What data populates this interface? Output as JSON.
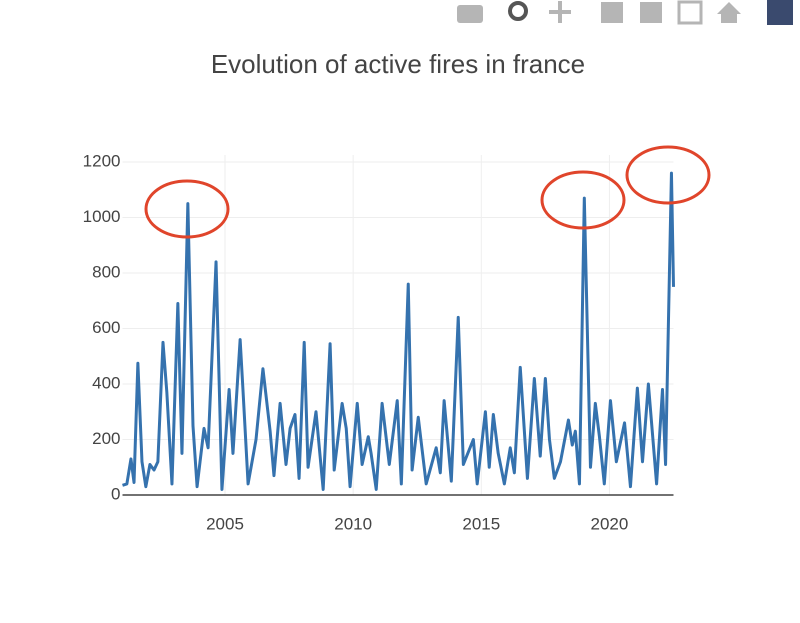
{
  "chart_data": {
    "type": "line",
    "title": "Evolution of active fires in france",
    "x": [
      2001.0,
      2001.17,
      2001.33,
      2001.45,
      2001.6,
      2001.76,
      2001.91,
      2002.07,
      2002.23,
      2002.38,
      2002.58,
      2002.73,
      2002.93,
      2003.16,
      2003.32,
      2003.55,
      2003.75,
      2003.91,
      2004.18,
      2004.34,
      2004.65,
      2004.88,
      2005.16,
      2005.31,
      2005.59,
      2005.7,
      2005.9,
      2006.21,
      2006.48,
      2006.76,
      2006.91,
      2007.15,
      2007.38,
      2007.54,
      2007.73,
      2007.89,
      2008.09,
      2008.24,
      2008.55,
      2008.83,
      2009.1,
      2009.26,
      2009.57,
      2009.73,
      2009.88,
      2010.16,
      2010.35,
      2010.59,
      2010.7,
      2010.9,
      2011.13,
      2011.41,
      2011.72,
      2011.88,
      2012.15,
      2012.3,
      2012.54,
      2012.85,
      2013.24,
      2013.4,
      2013.55,
      2013.83,
      2014.1,
      2014.3,
      2014.69,
      2014.84,
      2015.16,
      2015.31,
      2015.47,
      2015.66,
      2015.9,
      2016.13,
      2016.29,
      2016.52,
      2016.8,
      2017.07,
      2017.3,
      2017.5,
      2017.66,
      2017.85,
      2018.09,
      2018.4,
      2018.55,
      2018.67,
      2018.83,
      2019.02,
      2019.26,
      2019.45,
      2019.61,
      2019.8,
      2020.04,
      2020.27,
      2020.59,
      2020.82,
      2021.09,
      2021.29,
      2021.52,
      2021.84,
      2022.07,
      2022.19,
      2022.42,
      2022.5
    ],
    "series": [
      {
        "name": "active fires",
        "color": "#3572ae",
        "values": [
          35,
          40,
          130,
          45,
          475,
          120,
          30,
          110,
          90,
          120,
          550,
          370,
          40,
          690,
          150,
          1050,
          250,
          30,
          240,
          170,
          840,
          20,
          380,
          150,
          560,
          380,
          40,
          200,
          455,
          230,
          70,
          330,
          110,
          240,
          290,
          60,
          550,
          100,
          300,
          20,
          545,
          90,
          330,
          240,
          30,
          330,
          110,
          210,
          150,
          20,
          330,
          110,
          340,
          40,
          760,
          90,
          280,
          40,
          170,
          80,
          340,
          50,
          640,
          110,
          200,
          40,
          300,
          100,
          290,
          150,
          40,
          170,
          80,
          460,
          60,
          420,
          140,
          420,
          200,
          60,
          120,
          270,
          180,
          230,
          40,
          1070,
          100,
          330,
          210,
          40,
          340,
          120,
          260,
          30,
          385,
          120,
          400,
          40,
          380,
          110,
          1160,
          750
        ]
      }
    ],
    "xlim": [
      2001,
      2022.5
    ],
    "xticks": [
      2005,
      2010,
      2015,
      2020
    ],
    "ylim": [
      0,
      1200
    ],
    "yticks": [
      0,
      200,
      400,
      600,
      800,
      1000,
      1200
    ],
    "grid": true
  }
}
